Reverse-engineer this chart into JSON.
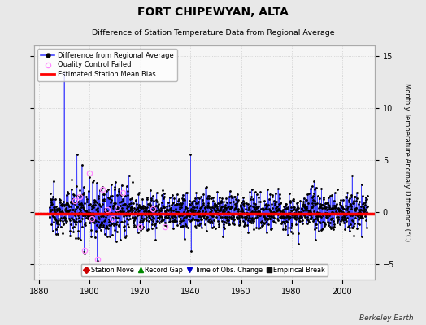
{
  "title": "FORT CHIPEWYAN, ALTA",
  "subtitle": "Difference of Station Temperature Data from Regional Average",
  "ylabel": "Monthly Temperature Anomaly Difference (°C)",
  "xlim": [
    1878,
    2013
  ],
  "ylim": [
    -6.5,
    16
  ],
  "yticks": [
    -5,
    0,
    5,
    10,
    15
  ],
  "xticks": [
    1880,
    1900,
    1920,
    1940,
    1960,
    1980,
    2000
  ],
  "bias_value": -0.15,
  "line_color": "#4444ff",
  "marker_color": "#000000",
  "qc_color": "#ff88ff",
  "bias_color": "#ff0000",
  "background_color": "#e8e8e8",
  "plot_bg_color": "#f5f5f5",
  "grid_color": "#cccccc",
  "seed": 12345,
  "n_points": 1560,
  "x_start": 1884,
  "x_end": 2010,
  "station_move_color": "#cc0000",
  "record_gap_color": "#008800",
  "time_obs_color": "#0000cc",
  "empirical_break_color": "#111111",
  "watermark": "Berkeley Earth"
}
